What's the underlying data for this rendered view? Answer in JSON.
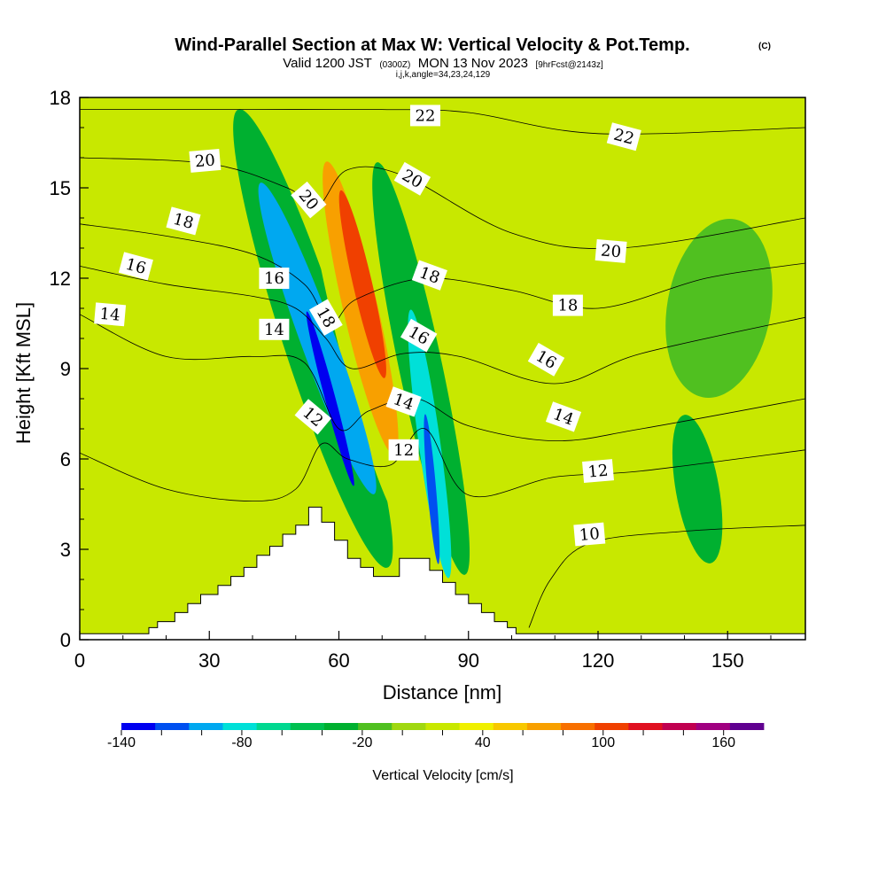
{
  "chart_data": {
    "type": "heatmap",
    "title": "Wind-Parallel Section at Max W: Vertical Velocity & Pot.Temp.",
    "title_mark": "(C)",
    "subtitle_prefix": "Valid 1200 JST",
    "subtitle_utc": "(0300Z)",
    "subtitle_date": "MON 13 Nov 2023",
    "subtitle_run": "[9hrFcst@2143z]",
    "subtitle_indices": "i,j,k,angle=34,23,24,129",
    "xlabel": "Distance [nm]",
    "ylabel": "Height [Kft MSL]",
    "xlim": [
      0,
      168
    ],
    "ylim": [
      0,
      18
    ],
    "x_ticks": [
      0,
      30,
      60,
      90,
      120,
      150
    ],
    "x_tick_labels": [
      "0",
      "30",
      "60",
      "90",
      "120",
      "150"
    ],
    "y_ticks": [
      0,
      3,
      6,
      9,
      12,
      15,
      18
    ],
    "y_tick_labels": [
      "0",
      "3",
      "6",
      "9",
      "12",
      "15",
      "18"
    ],
    "colorbar": {
      "title": "Vertical Velocity [cm/s]",
      "range": [
        -140,
        180
      ],
      "step": 20,
      "tick_values": [
        -140,
        -80,
        -20,
        40,
        100,
        160
      ],
      "tick_labels": [
        "-140",
        "-80",
        "-20",
        "40",
        "100",
        "160"
      ],
      "colors": [
        "#0000f0",
        "#0050f0",
        "#00a8f0",
        "#00e0d8",
        "#00d890",
        "#00c050",
        "#00b030",
        "#50c020",
        "#a0d810",
        "#c8e800",
        "#f0f000",
        "#f8c800",
        "#f8a000",
        "#f87000",
        "#f04000",
        "#e01020",
        "#c00050",
        "#a00080",
        "#600090"
      ],
      "background_color": "#c8e800"
    },
    "terrain_profile": [
      [
        0,
        0.2
      ],
      [
        16,
        0.2
      ],
      [
        16,
        0.4
      ],
      [
        18,
        0.4
      ],
      [
        18,
        0.6
      ],
      [
        22,
        0.6
      ],
      [
        22,
        0.9
      ],
      [
        25,
        0.9
      ],
      [
        25,
        1.2
      ],
      [
        28,
        1.2
      ],
      [
        28,
        1.5
      ],
      [
        32,
        1.5
      ],
      [
        32,
        1.8
      ],
      [
        35,
        1.8
      ],
      [
        35,
        2.1
      ],
      [
        38,
        2.1
      ],
      [
        38,
        2.4
      ],
      [
        41,
        2.4
      ],
      [
        41,
        2.8
      ],
      [
        44,
        2.8
      ],
      [
        44,
        3.1
      ],
      [
        47,
        3.1
      ],
      [
        47,
        3.5
      ],
      [
        50,
        3.5
      ],
      [
        50,
        3.8
      ],
      [
        53,
        3.8
      ],
      [
        53,
        4.4
      ],
      [
        56,
        4.4
      ],
      [
        56,
        3.9
      ],
      [
        59,
        3.9
      ],
      [
        59,
        3.3
      ],
      [
        62,
        3.3
      ],
      [
        62,
        2.7
      ],
      [
        65,
        2.7
      ],
      [
        65,
        2.4
      ],
      [
        68,
        2.4
      ],
      [
        68,
        2.1
      ],
      [
        74,
        2.1
      ],
      [
        74,
        2.7
      ],
      [
        81,
        2.7
      ],
      [
        81,
        2.3
      ],
      [
        84,
        2.3
      ],
      [
        84,
        1.9
      ],
      [
        87,
        1.9
      ],
      [
        87,
        1.5
      ],
      [
        90,
        1.5
      ],
      [
        90,
        1.2
      ],
      [
        93,
        1.2
      ],
      [
        93,
        0.9
      ],
      [
        96,
        0.9
      ],
      [
        96,
        0.6
      ],
      [
        99,
        0.6
      ],
      [
        99,
        0.4
      ],
      [
        101,
        0.4
      ],
      [
        101,
        0.2
      ],
      [
        168,
        0.2
      ]
    ],
    "w_features": [
      {
        "name": "updraft-main-core",
        "x": 65.5,
        "y": 11.8,
        "rx": 2.2,
        "ry": 3.2,
        "rot": -13,
        "value": 140
      },
      {
        "name": "updraft-main-mid",
        "x": 65,
        "y": 11,
        "rx": 4,
        "ry": 5,
        "rot": -13,
        "value": 100
      },
      {
        "name": "updraft-main-outer",
        "x": 64,
        "y": 11,
        "rx": 6,
        "ry": 7.5,
        "rot": -13,
        "value": 40
      },
      {
        "name": "updraft-upper",
        "x": 59,
        "y": 17,
        "rx": 4,
        "ry": 2,
        "rot": -10,
        "value": 40
      },
      {
        "name": "downdraft-left-core",
        "x": 58,
        "y": 8,
        "rx": 1.2,
        "ry": 3,
        "rot": -15,
        "value": -130
      },
      {
        "name": "downdraft-left-mid",
        "x": 55,
        "y": 10,
        "rx": 4,
        "ry": 5.5,
        "rot": -20,
        "value": -90
      },
      {
        "name": "downdraft-left-outer",
        "x": 54,
        "y": 10,
        "rx": 7,
        "ry": 8,
        "rot": -18,
        "value": -20
      },
      {
        "name": "downdraft-right-core",
        "x": 81.5,
        "y": 5,
        "rx": 1,
        "ry": 2.5,
        "rot": -5,
        "value": -120
      },
      {
        "name": "downdraft-right-mid",
        "x": 81,
        "y": 6.5,
        "rx": 2.5,
        "ry": 4.5,
        "rot": -8,
        "value": -70
      },
      {
        "name": "downdraft-right-outer",
        "x": 79,
        "y": 9,
        "rx": 5,
        "ry": 7,
        "rot": -12,
        "value": -20
      },
      {
        "name": "updraft-right",
        "x": 88,
        "y": 8.5,
        "rx": 2.5,
        "ry": 5,
        "rot": -12,
        "value": 40
      },
      {
        "name": "updraft-right-low",
        "x": 106,
        "y": 3.8,
        "rx": 2,
        "ry": 2.8,
        "rot": 0,
        "value": 40
      },
      {
        "name": "updraft-left-low",
        "x": 31,
        "y": 3.4,
        "rx": 2.2,
        "ry": 2,
        "rot": 0,
        "value": 40
      },
      {
        "name": "downdraft-far-right",
        "x": 143,
        "y": 5,
        "rx": 5,
        "ry": 2.5,
        "rot": -10,
        "value": -20
      },
      {
        "name": "updraft-far-right-upper",
        "x": 148,
        "y": 11,
        "rx": 12,
        "ry": 3,
        "rot": 10,
        "value": 10
      }
    ],
    "theta_contours": [
      {
        "value": 10,
        "label": "10",
        "points": [
          [
            104,
            0.4
          ],
          [
            109,
            2
          ],
          [
            118,
            3.2
          ],
          [
            140,
            3.6
          ],
          [
            168,
            3.8
          ]
        ]
      },
      {
        "value": 12,
        "label": "12",
        "points": [
          [
            0,
            6.2
          ],
          [
            20,
            5
          ],
          [
            40,
            4.6
          ],
          [
            50,
            5
          ],
          [
            56,
            6.5
          ],
          [
            62,
            6
          ],
          [
            72,
            5.8
          ],
          [
            80,
            7
          ],
          [
            90,
            4.8
          ],
          [
            110,
            5.4
          ],
          [
            130,
            5.6
          ],
          [
            168,
            6.3
          ]
        ]
      },
      {
        "value": 14,
        "label": "14",
        "points": [
          [
            0,
            10.8
          ],
          [
            20,
            9.4
          ],
          [
            40,
            9.4
          ],
          [
            52,
            9.2
          ],
          [
            60,
            7
          ],
          [
            67,
            7.6
          ],
          [
            78,
            8
          ],
          [
            90,
            7.1
          ],
          [
            110,
            6.6
          ],
          [
            130,
            7
          ],
          [
            168,
            8
          ]
        ]
      },
      {
        "value": 16,
        "label": "16",
        "points": [
          [
            0,
            12.4
          ],
          [
            20,
            11.8
          ],
          [
            40,
            11.4
          ],
          [
            50,
            11
          ],
          [
            57,
            10
          ],
          [
            63,
            9
          ],
          [
            75,
            9.5
          ],
          [
            88,
            9.4
          ],
          [
            110,
            8.5
          ],
          [
            130,
            9.5
          ],
          [
            168,
            10.7
          ]
        ]
      },
      {
        "value": 18,
        "label": "18",
        "points": [
          [
            0,
            13.8
          ],
          [
            20,
            13.4
          ],
          [
            40,
            12.8
          ],
          [
            52,
            11.8
          ],
          [
            58,
            10.5
          ],
          [
            64,
            11.3
          ],
          [
            80,
            12
          ],
          [
            100,
            11.6
          ],
          [
            120,
            11
          ],
          [
            145,
            12
          ],
          [
            168,
            12.5
          ]
        ]
      },
      {
        "value": 20,
        "label": "20",
        "points": [
          [
            0,
            16
          ],
          [
            30,
            15.8
          ],
          [
            48,
            15
          ],
          [
            55,
            14.4
          ],
          [
            62,
            15.6
          ],
          [
            75,
            15.4
          ],
          [
            100,
            13.5
          ],
          [
            125,
            13
          ],
          [
            168,
            14
          ]
        ]
      },
      {
        "value": 22,
        "label": "22",
        "points": [
          [
            0,
            17.6
          ],
          [
            40,
            17.6
          ],
          [
            70,
            17.6
          ],
          [
            90,
            17.5
          ],
          [
            120,
            16.8
          ],
          [
            168,
            17
          ]
        ]
      }
    ],
    "contour_labels": [
      {
        "text": "20",
        "x": 29,
        "y": 15.9,
        "rot": -5
      },
      {
        "text": "18",
        "x": 24,
        "y": 13.9,
        "rot": 15
      },
      {
        "text": "16",
        "x": 13,
        "y": 12.4,
        "rot": 15
      },
      {
        "text": "14",
        "x": 7,
        "y": 10.8,
        "rot": 5
      },
      {
        "text": "22",
        "x": 80,
        "y": 17.4,
        "rot": 0
      },
      {
        "text": "20",
        "x": 77,
        "y": 15.3,
        "rot": 30
      },
      {
        "text": "20",
        "x": 53,
        "y": 14.6,
        "rot": 50
      },
      {
        "text": "16",
        "x": 45,
        "y": 12,
        "rot": 0
      },
      {
        "text": "14",
        "x": 45,
        "y": 10.3,
        "rot": 0
      },
      {
        "text": "18",
        "x": 57,
        "y": 10.7,
        "rot": 60
      },
      {
        "text": "18",
        "x": 81,
        "y": 12.1,
        "rot": 20
      },
      {
        "text": "16",
        "x": 78.5,
        "y": 10.1,
        "rot": 30
      },
      {
        "text": "12",
        "x": 54,
        "y": 7.4,
        "rot": 40
      },
      {
        "text": "14",
        "x": 75,
        "y": 7.9,
        "rot": 20
      },
      {
        "text": "12",
        "x": 75,
        "y": 6.3,
        "rot": 0
      },
      {
        "text": "22",
        "x": 126,
        "y": 16.7,
        "rot": 15
      },
      {
        "text": "20",
        "x": 123,
        "y": 12.9,
        "rot": 5
      },
      {
        "text": "18",
        "x": 113,
        "y": 11.1,
        "rot": 0
      },
      {
        "text": "16",
        "x": 108,
        "y": 9.3,
        "rot": 30
      },
      {
        "text": "14",
        "x": 112,
        "y": 7.4,
        "rot": 20
      },
      {
        "text": "12",
        "x": 120,
        "y": 5.6,
        "rot": -5
      },
      {
        "text": "10",
        "x": 118,
        "y": 3.5,
        "rot": -5
      }
    ]
  }
}
